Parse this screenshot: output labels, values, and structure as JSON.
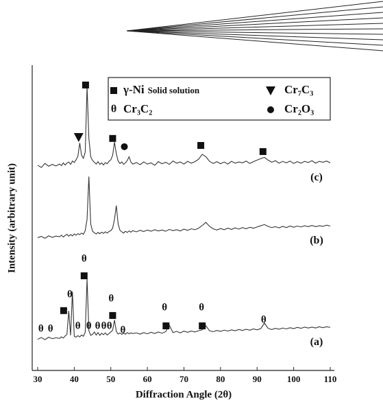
{
  "chart_data": {
    "type": "line",
    "xlabel": "Diffraction Angle (2θ)",
    "ylabel": "Intensity (arbitrary unit)",
    "xlim": [
      30,
      110
    ],
    "xticks": [
      30,
      40,
      50,
      60,
      70,
      80,
      90,
      100,
      110
    ],
    "ylim": [
      0,
      100
    ],
    "x": [
      30,
      31,
      32,
      33,
      34,
      35,
      36,
      36.5,
      37,
      37.5,
      38,
      38.5,
      39,
      39.5,
      40,
      40.5,
      41,
      41.5,
      42,
      42.5,
      43,
      43.5,
      44,
      44.5,
      45,
      45.5,
      46,
      46.5,
      47,
      47.5,
      48,
      48.5,
      49,
      49.5,
      50,
      50.5,
      51,
      51.5,
      52,
      52.5,
      53,
      53.5,
      54,
      54.5,
      55,
      55.5,
      56,
      57,
      58,
      59,
      60,
      61,
      62,
      63,
      64,
      65,
      66,
      67,
      68,
      69,
      70,
      71,
      72,
      73,
      74,
      75,
      76,
      77,
      78,
      79,
      80,
      81,
      82,
      83,
      84,
      85,
      86,
      87,
      88,
      89,
      90,
      91,
      92,
      93,
      94,
      95,
      96,
      97,
      98,
      99,
      100,
      101,
      102,
      103,
      104,
      105,
      106,
      107,
      108,
      109,
      110
    ],
    "series": [
      {
        "name": "(c)",
        "color": "#333333",
        "values": [
          67.2,
          66.5,
          67.8,
          66.9,
          67.5,
          67.0,
          67.6,
          67.1,
          68.0,
          67.3,
          67.9,
          68.3,
          67.5,
          68.6,
          68.1,
          69.0,
          70.2,
          74.5,
          70.5,
          69.5,
          71.5,
          93.0,
          76.0,
          70.0,
          68.8,
          68.2,
          67.6,
          68.4,
          67.5,
          68.0,
          67.3,
          68.1,
          67.7,
          68.5,
          69.0,
          70.5,
          74.8,
          71.0,
          68.6,
          67.8,
          68.3,
          67.5,
          68.0,
          68.8,
          70.0,
          68.2,
          67.6,
          68.1,
          67.4,
          68.3,
          67.6,
          68.0,
          67.2,
          68.4,
          67.7,
          68.2,
          67.5,
          68.6,
          67.9,
          68.3,
          67.6,
          68.5,
          67.9,
          68.4,
          69.2,
          70.8,
          70.0,
          68.5,
          67.8,
          68.4,
          67.7,
          68.3,
          67.6,
          68.5,
          67.9,
          68.3,
          68.0,
          68.6,
          67.8,
          68.4,
          68.9,
          69.4,
          69.8,
          68.9,
          68.2,
          68.7,
          67.9,
          68.5,
          68.0,
          68.6,
          67.8,
          68.4,
          67.9,
          68.5,
          68.1,
          68.7,
          67.9,
          68.5,
          68.2,
          68.6,
          68.0
        ]
      },
      {
        "name": "(b)",
        "color": "#333333",
        "values": [
          43.5,
          43.9,
          43.3,
          44.1,
          43.6,
          44.0,
          43.8,
          44.3,
          43.7,
          44.2,
          44.6,
          44.0,
          44.5,
          44.1,
          44.7,
          44.3,
          44.8,
          44.5,
          45.0,
          44.6,
          45.8,
          49.5,
          63.5,
          48.0,
          45.6,
          45.1,
          44.7,
          45.2,
          44.8,
          45.3,
          44.9,
          45.4,
          45.0,
          45.5,
          45.8,
          46.6,
          49.5,
          54.0,
          48.0,
          45.9,
          45.4,
          45.0,
          45.6,
          45.2,
          45.7,
          45.3,
          45.8,
          45.4,
          45.9,
          45.5,
          46.0,
          45.6,
          46.1,
          45.7,
          46.0,
          45.6,
          46.2,
          45.8,
          46.1,
          45.7,
          46.3,
          45.9,
          46.4,
          46.1,
          46.6,
          47.5,
          48.5,
          47.2,
          46.4,
          46.0,
          46.5,
          46.1,
          46.6,
          46.2,
          46.7,
          46.3,
          46.8,
          46.4,
          46.9,
          46.6,
          47.0,
          47.4,
          47.8,
          47.2,
          46.8,
          47.1,
          46.7,
          47.2,
          46.8,
          47.3,
          46.9,
          47.3,
          47.0,
          47.4,
          47.1,
          47.5,
          47.1,
          47.4,
          47.2,
          47.6,
          47.3
        ]
      },
      {
        "name": "(a)",
        "color": "#333333",
        "values": [
          10.2,
          10.8,
          10.1,
          10.9,
          10.4,
          10.7,
          10.5,
          11.0,
          10.6,
          11.3,
          11.8,
          19.5,
          11.5,
          25.8,
          11.2,
          10.9,
          11.4,
          11.0,
          11.6,
          11.2,
          12.5,
          30.0,
          13.0,
          11.5,
          11.8,
          12.6,
          11.6,
          12.4,
          11.5,
          12.2,
          11.7,
          12.3,
          11.6,
          12.1,
          12.6,
          13.2,
          16.5,
          12.8,
          11.9,
          12.3,
          11.8,
          12.2,
          11.9,
          12.4,
          12.0,
          12.3,
          12.1,
          12.3,
          11.9,
          12.4,
          12.0,
          12.5,
          12.1,
          12.6,
          12.2,
          12.7,
          14.8,
          12.4,
          12.8,
          12.3,
          12.9,
          12.5,
          12.9,
          12.6,
          13.0,
          13.3,
          14.6,
          13.0,
          12.7,
          13.1,
          12.8,
          13.2,
          12.9,
          13.3,
          13.0,
          13.4,
          13.1,
          13.5,
          13.2,
          13.6,
          13.3,
          13.7,
          15.5,
          13.8,
          13.4,
          13.8,
          13.5,
          13.9,
          13.6,
          14.0,
          13.7,
          14.1,
          13.8,
          14.2,
          13.9,
          14.2,
          13.9,
          14.3,
          14.0,
          14.3,
          14.1
        ]
      }
    ],
    "legend": [
      {
        "marker": "square",
        "label": "γ-Ni",
        "note": "Solid solution"
      },
      {
        "marker": "triangle",
        "label": "Cr₇C₃"
      },
      {
        "symbol": "θ",
        "label": "Cr₃C₂"
      },
      {
        "marker": "circle",
        "label": "Cr₂O₃"
      }
    ],
    "peak_markers": [
      {
        "marker": "square",
        "x": 43.1,
        "y": 93.5
      },
      {
        "marker": "triangle",
        "x": 41.2,
        "y": 76.4
      },
      {
        "marker": "square",
        "x": 50.5,
        "y": 76
      },
      {
        "marker": "circle",
        "x": 53.7,
        "y": 73.3
      },
      {
        "marker": "square",
        "x": 74.6,
        "y": 73.7
      },
      {
        "marker": "square",
        "x": 91.6,
        "y": 71.7
      },
      {
        "marker": "square",
        "x": 37.1,
        "y": 19.6
      },
      {
        "marker": "square",
        "x": 42.7,
        "y": 31
      },
      {
        "marker": "square",
        "x": 50.5,
        "y": 18
      },
      {
        "marker": "square",
        "x": 65.1,
        "y": 14.6
      },
      {
        "marker": "square",
        "x": 75,
        "y": 14.6
      },
      {
        "symbol": "θ",
        "x": 30.9,
        "y": 13.5
      },
      {
        "symbol": "θ",
        "x": 33.5,
        "y": 13.5
      },
      {
        "symbol": "θ",
        "x": 38.8,
        "y": 24.7
      },
      {
        "symbol": "θ",
        "x": 41,
        "y": 14.4
      },
      {
        "symbol": "θ",
        "x": 42.7,
        "y": 36.4
      },
      {
        "symbol": "θ",
        "x": 44,
        "y": 14.4
      },
      {
        "symbol": "θ",
        "x": 46.4,
        "y": 14.4
      },
      {
        "symbol": "θ",
        "x": 48.1,
        "y": 14.4
      },
      {
        "symbol": "θ",
        "x": 49.6,
        "y": 14.4
      },
      {
        "symbol": "θ",
        "x": 50.1,
        "y": 23.4
      },
      {
        "symbol": "θ",
        "x": 53.3,
        "y": 13
      },
      {
        "symbol": "θ",
        "x": 64.7,
        "y": 20.4
      },
      {
        "symbol": "θ",
        "x": 74.8,
        "y": 20.4
      },
      {
        "symbol": "θ",
        "x": 91.8,
        "y": 16.4
      }
    ]
  }
}
